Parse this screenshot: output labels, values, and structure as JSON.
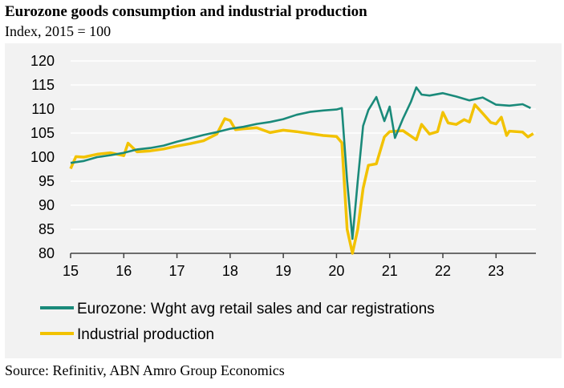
{
  "title": "Eurozone goods consumption and industrial production",
  "subtitle": "Index, 2015 = 100",
  "source": "Source: Refinitiv, ABN Amro Group Economics",
  "colors": {
    "series1": "#1a8a7a",
    "series2": "#f2c200",
    "background": "#f2f2f2",
    "grid": "#ffffff"
  },
  "chart_data": {
    "type": "line",
    "title": "Eurozone goods consumption and industrial production",
    "subtitle": "Index, 2015 = 100",
    "xlabel": "",
    "ylabel": "",
    "x_tick_labels": [
      "15",
      "16",
      "17",
      "18",
      "19",
      "20",
      "21",
      "22",
      "23"
    ],
    "y_tick_labels": [
      "80",
      "85",
      "90",
      "95",
      "100",
      "105",
      "110",
      "115",
      "120"
    ],
    "xlim": [
      2015.0,
      2023.75
    ],
    "ylim": [
      80,
      120
    ],
    "grid": true,
    "legend_position": "bottom",
    "series": [
      {
        "name": "Eurozone: Wght avg retail sales and car registrations",
        "color": "#1a8a7a",
        "points": [
          [
            2015.0,
            98.8
          ],
          [
            2015.25,
            99.2
          ],
          [
            2015.5,
            100.0
          ],
          [
            2015.75,
            100.4
          ],
          [
            2016.0,
            100.9
          ],
          [
            2016.25,
            101.6
          ],
          [
            2016.5,
            101.9
          ],
          [
            2016.75,
            102.4
          ],
          [
            2017.0,
            103.2
          ],
          [
            2017.25,
            103.9
          ],
          [
            2017.5,
            104.6
          ],
          [
            2017.75,
            105.2
          ],
          [
            2018.0,
            105.9
          ],
          [
            2018.25,
            106.3
          ],
          [
            2018.5,
            106.9
          ],
          [
            2018.75,
            107.3
          ],
          [
            2019.0,
            107.9
          ],
          [
            2019.25,
            108.8
          ],
          [
            2019.5,
            109.4
          ],
          [
            2019.75,
            109.7
          ],
          [
            2020.0,
            109.9
          ],
          [
            2020.1,
            110.2
          ],
          [
            2020.2,
            95.0
          ],
          [
            2020.3,
            83.0
          ],
          [
            2020.4,
            95.0
          ],
          [
            2020.5,
            106.5
          ],
          [
            2020.6,
            109.8
          ],
          [
            2020.75,
            112.5
          ],
          [
            2020.9,
            107.5
          ],
          [
            2021.0,
            110.5
          ],
          [
            2021.1,
            104.0
          ],
          [
            2021.25,
            108.0
          ],
          [
            2021.4,
            111.5
          ],
          [
            2021.5,
            114.5
          ],
          [
            2021.6,
            113.0
          ],
          [
            2021.75,
            112.8
          ],
          [
            2022.0,
            113.3
          ],
          [
            2022.25,
            112.6
          ],
          [
            2022.5,
            111.8
          ],
          [
            2022.75,
            112.4
          ],
          [
            2023.0,
            110.9
          ],
          [
            2023.25,
            110.7
          ],
          [
            2023.5,
            111.0
          ],
          [
            2023.65,
            110.2
          ]
        ]
      },
      {
        "name": "Industrial production",
        "color": "#f2c200",
        "points": [
          [
            2015.0,
            97.6
          ],
          [
            2015.1,
            100.1
          ],
          [
            2015.25,
            100.0
          ],
          [
            2015.5,
            100.6
          ],
          [
            2015.75,
            100.9
          ],
          [
            2016.0,
            100.3
          ],
          [
            2016.08,
            102.9
          ],
          [
            2016.25,
            101.1
          ],
          [
            2016.5,
            101.3
          ],
          [
            2016.75,
            101.7
          ],
          [
            2017.0,
            102.3
          ],
          [
            2017.25,
            102.8
          ],
          [
            2017.5,
            103.4
          ],
          [
            2017.75,
            104.8
          ],
          [
            2017.9,
            108.0
          ],
          [
            2018.0,
            107.6
          ],
          [
            2018.1,
            105.7
          ],
          [
            2018.25,
            105.9
          ],
          [
            2018.5,
            106.1
          ],
          [
            2018.75,
            105.1
          ],
          [
            2019.0,
            105.6
          ],
          [
            2019.25,
            105.3
          ],
          [
            2019.5,
            104.9
          ],
          [
            2019.75,
            104.5
          ],
          [
            2020.0,
            104.3
          ],
          [
            2020.1,
            103.0
          ],
          [
            2020.2,
            85.0
          ],
          [
            2020.3,
            80.0
          ],
          [
            2020.4,
            85.0
          ],
          [
            2020.5,
            93.5
          ],
          [
            2020.6,
            98.3
          ],
          [
            2020.75,
            98.6
          ],
          [
            2020.9,
            104.2
          ],
          [
            2021.0,
            105.3
          ],
          [
            2021.25,
            105.5
          ],
          [
            2021.5,
            103.6
          ],
          [
            2021.6,
            106.8
          ],
          [
            2021.75,
            104.8
          ],
          [
            2021.9,
            105.3
          ],
          [
            2022.0,
            109.3
          ],
          [
            2022.1,
            107.1
          ],
          [
            2022.25,
            106.8
          ],
          [
            2022.4,
            107.8
          ],
          [
            2022.5,
            107.3
          ],
          [
            2022.6,
            110.9
          ],
          [
            2022.75,
            109.1
          ],
          [
            2022.9,
            107.2
          ],
          [
            2023.0,
            106.9
          ],
          [
            2023.1,
            108.3
          ],
          [
            2023.2,
            104.5
          ],
          [
            2023.25,
            105.4
          ],
          [
            2023.5,
            105.2
          ],
          [
            2023.6,
            104.2
          ],
          [
            2023.7,
            104.9
          ]
        ]
      }
    ]
  }
}
